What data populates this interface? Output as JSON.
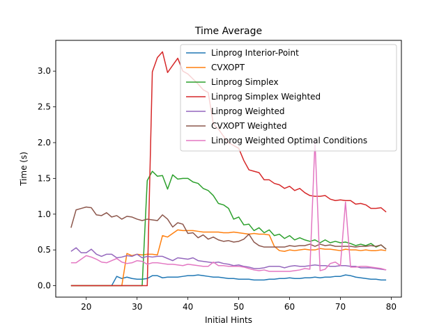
{
  "chart_data": {
    "type": "line",
    "title": "Time Average",
    "xlabel": "Initial Hints",
    "ylabel": "Time (s)",
    "xlim": [
      14,
      82
    ],
    "ylim": [
      -0.16,
      3.43
    ],
    "xticks": [
      20,
      30,
      40,
      50,
      60,
      70,
      80
    ],
    "yticks": [
      0.0,
      0.5,
      1.0,
      1.5,
      2.0,
      2.5,
      3.0
    ],
    "grid": false,
    "legend": "top-right",
    "x": [
      17,
      18,
      19,
      20,
      21,
      22,
      23,
      24,
      25,
      26,
      27,
      28,
      29,
      30,
      31,
      32,
      33,
      34,
      35,
      36,
      37,
      38,
      39,
      40,
      41,
      42,
      43,
      44,
      45,
      46,
      47,
      48,
      49,
      50,
      51,
      52,
      53,
      54,
      55,
      56,
      57,
      58,
      59,
      60,
      61,
      62,
      63,
      64,
      65,
      66,
      67,
      68,
      69,
      70,
      71,
      72,
      73,
      74,
      75,
      76,
      77,
      78,
      79
    ],
    "series": [
      {
        "name": "Linprog Interior-Point",
        "color": "#1f77b4",
        "values": [
          0,
          0,
          0,
          0,
          0,
          0,
          0,
          0,
          0,
          0.13,
          0.1,
          0.12,
          0.1,
          0.09,
          0.09,
          0.1,
          0.14,
          0.14,
          0.11,
          0.12,
          0.12,
          0.12,
          0.13,
          0.14,
          0.14,
          0.15,
          0.14,
          0.13,
          0.12,
          0.12,
          0.11,
          0.1,
          0.1,
          0.09,
          0.09,
          0.09,
          0.08,
          0.08,
          0.08,
          0.09,
          0.09,
          0.1,
          0.1,
          0.11,
          0.1,
          0.1,
          0.11,
          0.11,
          0.12,
          0.11,
          0.12,
          0.12,
          0.13,
          0.13,
          0.15,
          0.14,
          0.12,
          0.11,
          0.1,
          0.09,
          0.09,
          0.08,
          0.08
        ]
      },
      {
        "name": "CVXOPT",
        "color": "#ff7f0e",
        "values": [
          0,
          0,
          0,
          0,
          0,
          0,
          0,
          0,
          0,
          0,
          0,
          0.45,
          0.42,
          0.44,
          0.43,
          0.44,
          0.44,
          0.43,
          0.7,
          0.68,
          0.73,
          0.78,
          0.77,
          0.77,
          0.77,
          0.76,
          0.75,
          0.75,
          0.75,
          0.75,
          0.74,
          0.74,
          0.75,
          0.74,
          0.73,
          0.72,
          0.73,
          0.72,
          0.72,
          0.71,
          0.55,
          0.49,
          0.48,
          0.5,
          0.49,
          0.5,
          0.51,
          0.5,
          0.5,
          0.52,
          0.51,
          0.51,
          0.5,
          0.49,
          0.51,
          0.5,
          0.5,
          0.49,
          0.5,
          0.49,
          0.49,
          0.5,
          0.49
        ]
      },
      {
        "name": "Linprog Simplex",
        "color": "#2ca02c",
        "values": [
          0,
          0,
          0,
          0,
          0,
          0,
          0,
          0,
          0,
          0,
          0,
          0,
          0,
          0,
          0,
          1.47,
          1.6,
          1.53,
          1.54,
          1.35,
          1.55,
          1.49,
          1.5,
          1.5,
          1.45,
          1.43,
          1.36,
          1.33,
          1.26,
          1.15,
          1.13,
          1.08,
          0.93,
          0.96,
          0.85,
          0.86,
          0.77,
          0.81,
          0.74,
          0.78,
          0.7,
          0.72,
          0.66,
          0.7,
          0.64,
          0.67,
          0.64,
          0.62,
          0.64,
          0.6,
          0.64,
          0.6,
          0.62,
          0.6,
          0.61,
          0.59,
          0.56,
          0.58,
          0.56,
          0.59,
          0.54,
          0.57,
          0.51
        ]
      },
      {
        "name": "Linprog Simplex Weighted",
        "color": "#d62728",
        "values": [
          0,
          0,
          0,
          0,
          0,
          0,
          0,
          0,
          0,
          0,
          0,
          0,
          0,
          0,
          0,
          0,
          2.99,
          3.19,
          3.27,
          2.98,
          3.08,
          3.18,
          3.0,
          2.96,
          2.89,
          2.82,
          2.74,
          2.7,
          2.26,
          2.19,
          2.09,
          2.0,
          1.96,
          1.92,
          1.75,
          1.62,
          1.6,
          1.58,
          1.48,
          1.48,
          1.43,
          1.41,
          1.36,
          1.39,
          1.33,
          1.36,
          1.3,
          1.26,
          1.25,
          1.25,
          1.26,
          1.21,
          1.19,
          1.2,
          1.19,
          1.19,
          1.14,
          1.15,
          1.13,
          1.08,
          1.08,
          1.09,
          1.03
        ]
      },
      {
        "name": "Linprog Weighted",
        "color": "#9467bd",
        "values": [
          0.48,
          0.53,
          0.46,
          0.46,
          0.51,
          0.44,
          0.41,
          0.44,
          0.44,
          0.39,
          0.4,
          0.42,
          0.41,
          0.44,
          0.39,
          0.41,
          0.4,
          0.41,
          0.41,
          0.38,
          0.35,
          0.39,
          0.38,
          0.37,
          0.39,
          0.35,
          0.34,
          0.33,
          0.32,
          0.33,
          0.31,
          0.3,
          0.28,
          0.29,
          0.27,
          0.26,
          0.24,
          0.24,
          0.25,
          0.27,
          0.27,
          0.27,
          0.25,
          0.27,
          0.28,
          0.27,
          0.27,
          0.28,
          0.29,
          0.28,
          0.28,
          0.27,
          0.27,
          0.28,
          0.28,
          0.27,
          0.27,
          0.25,
          0.25,
          0.25,
          0.24,
          0.23,
          0.22
        ]
      },
      {
        "name": "CVXOPT Weighted",
        "color": "#8c564b",
        "values": [
          0.81,
          1.06,
          1.08,
          1.1,
          1.09,
          0.99,
          0.98,
          1.02,
          0.96,
          0.98,
          0.93,
          0.97,
          0.96,
          0.93,
          0.91,
          0.93,
          0.92,
          0.91,
          0.99,
          0.93,
          0.82,
          0.88,
          0.86,
          0.73,
          0.74,
          0.67,
          0.71,
          0.65,
          0.68,
          0.64,
          0.62,
          0.63,
          0.61,
          0.62,
          0.65,
          0.72,
          0.61,
          0.56,
          0.54,
          0.54,
          0.54,
          0.54,
          0.54,
          0.56,
          0.55,
          0.56,
          0.56,
          0.58,
          0.55,
          0.58,
          0.56,
          0.57,
          0.55,
          0.55,
          0.55,
          0.55,
          0.54,
          0.55,
          0.55,
          0.56,
          0.55,
          0.57,
          0.51
        ]
      },
      {
        "name": "Linprog Weighted Optimal Conditions",
        "color": "#e377c2",
        "values": [
          0.32,
          0.32,
          0.37,
          0.42,
          0.4,
          0.37,
          0.33,
          0.32,
          0.35,
          0.38,
          0.33,
          0.31,
          0.32,
          0.35,
          0.34,
          0.3,
          0.32,
          0.32,
          0.31,
          0.3,
          0.3,
          0.29,
          0.28,
          0.3,
          0.29,
          0.28,
          0.27,
          0.27,
          0.33,
          0.28,
          0.28,
          0.27,
          0.27,
          0.27,
          0.26,
          0.24,
          0.22,
          0.21,
          0.22,
          0.2,
          0.2,
          0.2,
          0.2,
          0.2,
          0.21,
          0.22,
          0.24,
          0.23,
          2.03,
          0.21,
          0.23,
          0.31,
          0.33,
          0.28,
          1.17,
          0.26,
          0.26,
          0.27,
          0.27,
          0.26,
          0.25,
          0.24,
          0.22
        ]
      }
    ]
  }
}
